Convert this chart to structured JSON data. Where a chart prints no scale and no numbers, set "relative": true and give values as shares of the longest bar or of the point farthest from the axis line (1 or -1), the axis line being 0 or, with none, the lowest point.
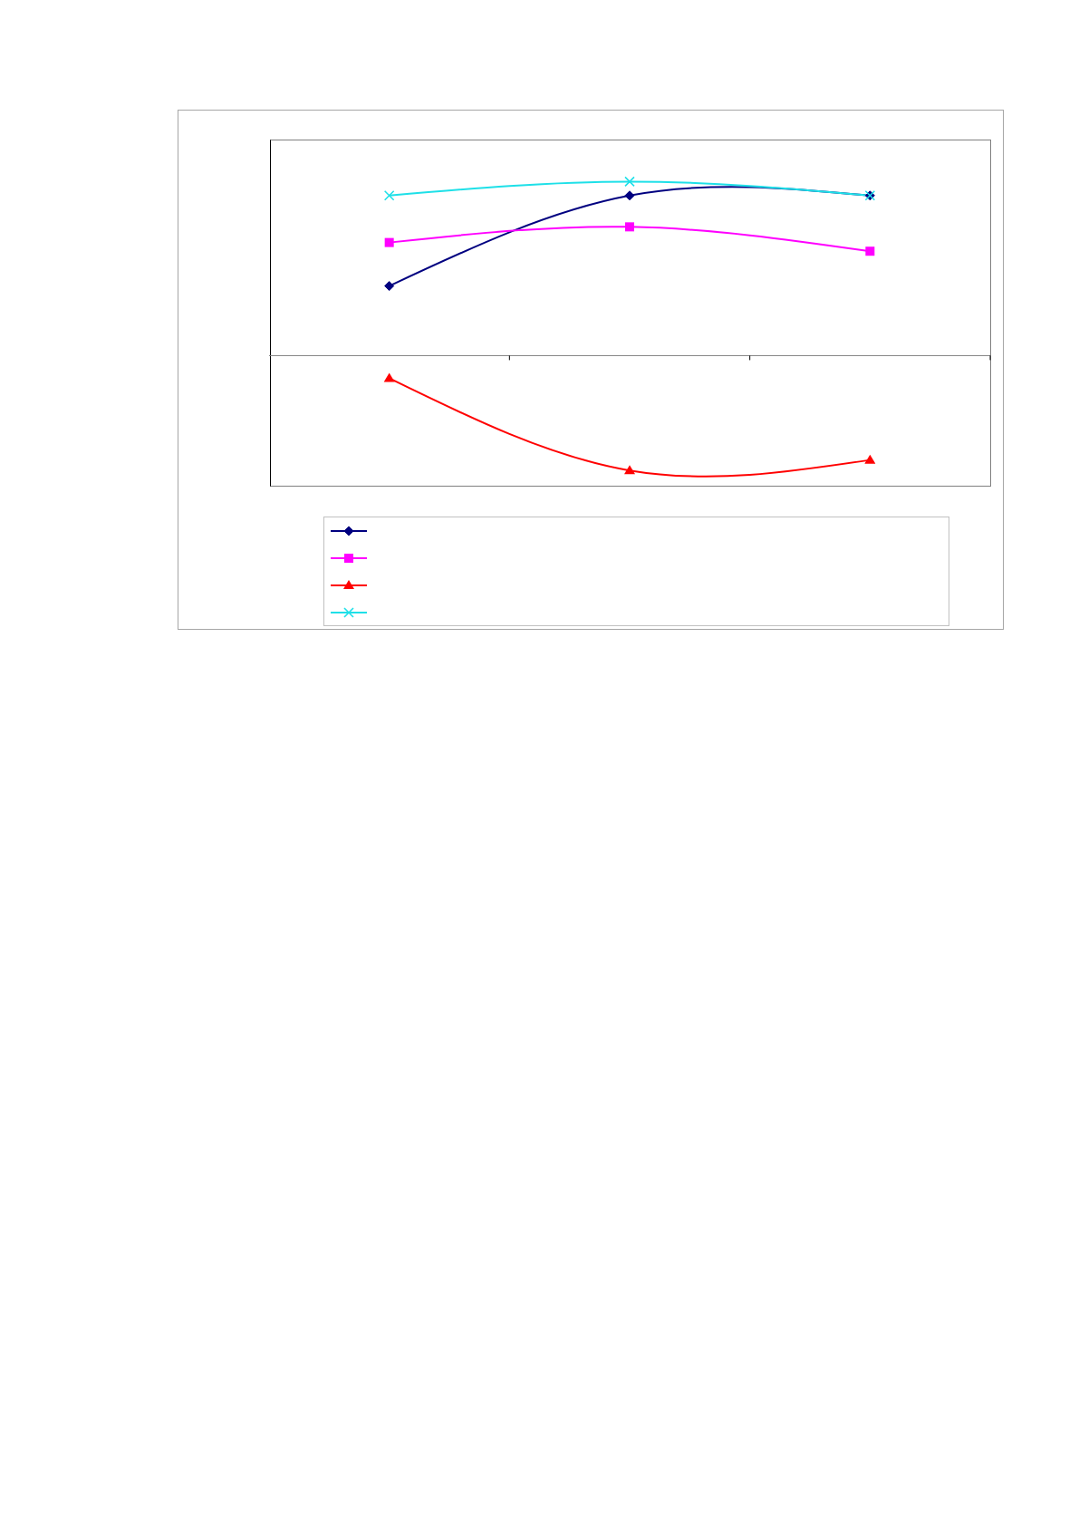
{
  "chart_data": {
    "type": "line",
    "relative": true,
    "categories": [
      null,
      null,
      null
    ],
    "series": [
      {
        "color": "#000080",
        "marker": "diamond",
        "values": [
          0.4,
          0.92,
          0.92
        ]
      },
      {
        "color": "#ff00ff",
        "marker": "square",
        "values": [
          0.65,
          0.74,
          0.6
        ]
      },
      {
        "color": "#ff0000",
        "marker": "triangle",
        "values": [
          -0.13,
          -0.66,
          -0.6
        ]
      },
      {
        "color": "#1ee0e8",
        "marker": "cross",
        "values": [
          0.92,
          1,
          0.92
        ]
      }
    ]
  }
}
